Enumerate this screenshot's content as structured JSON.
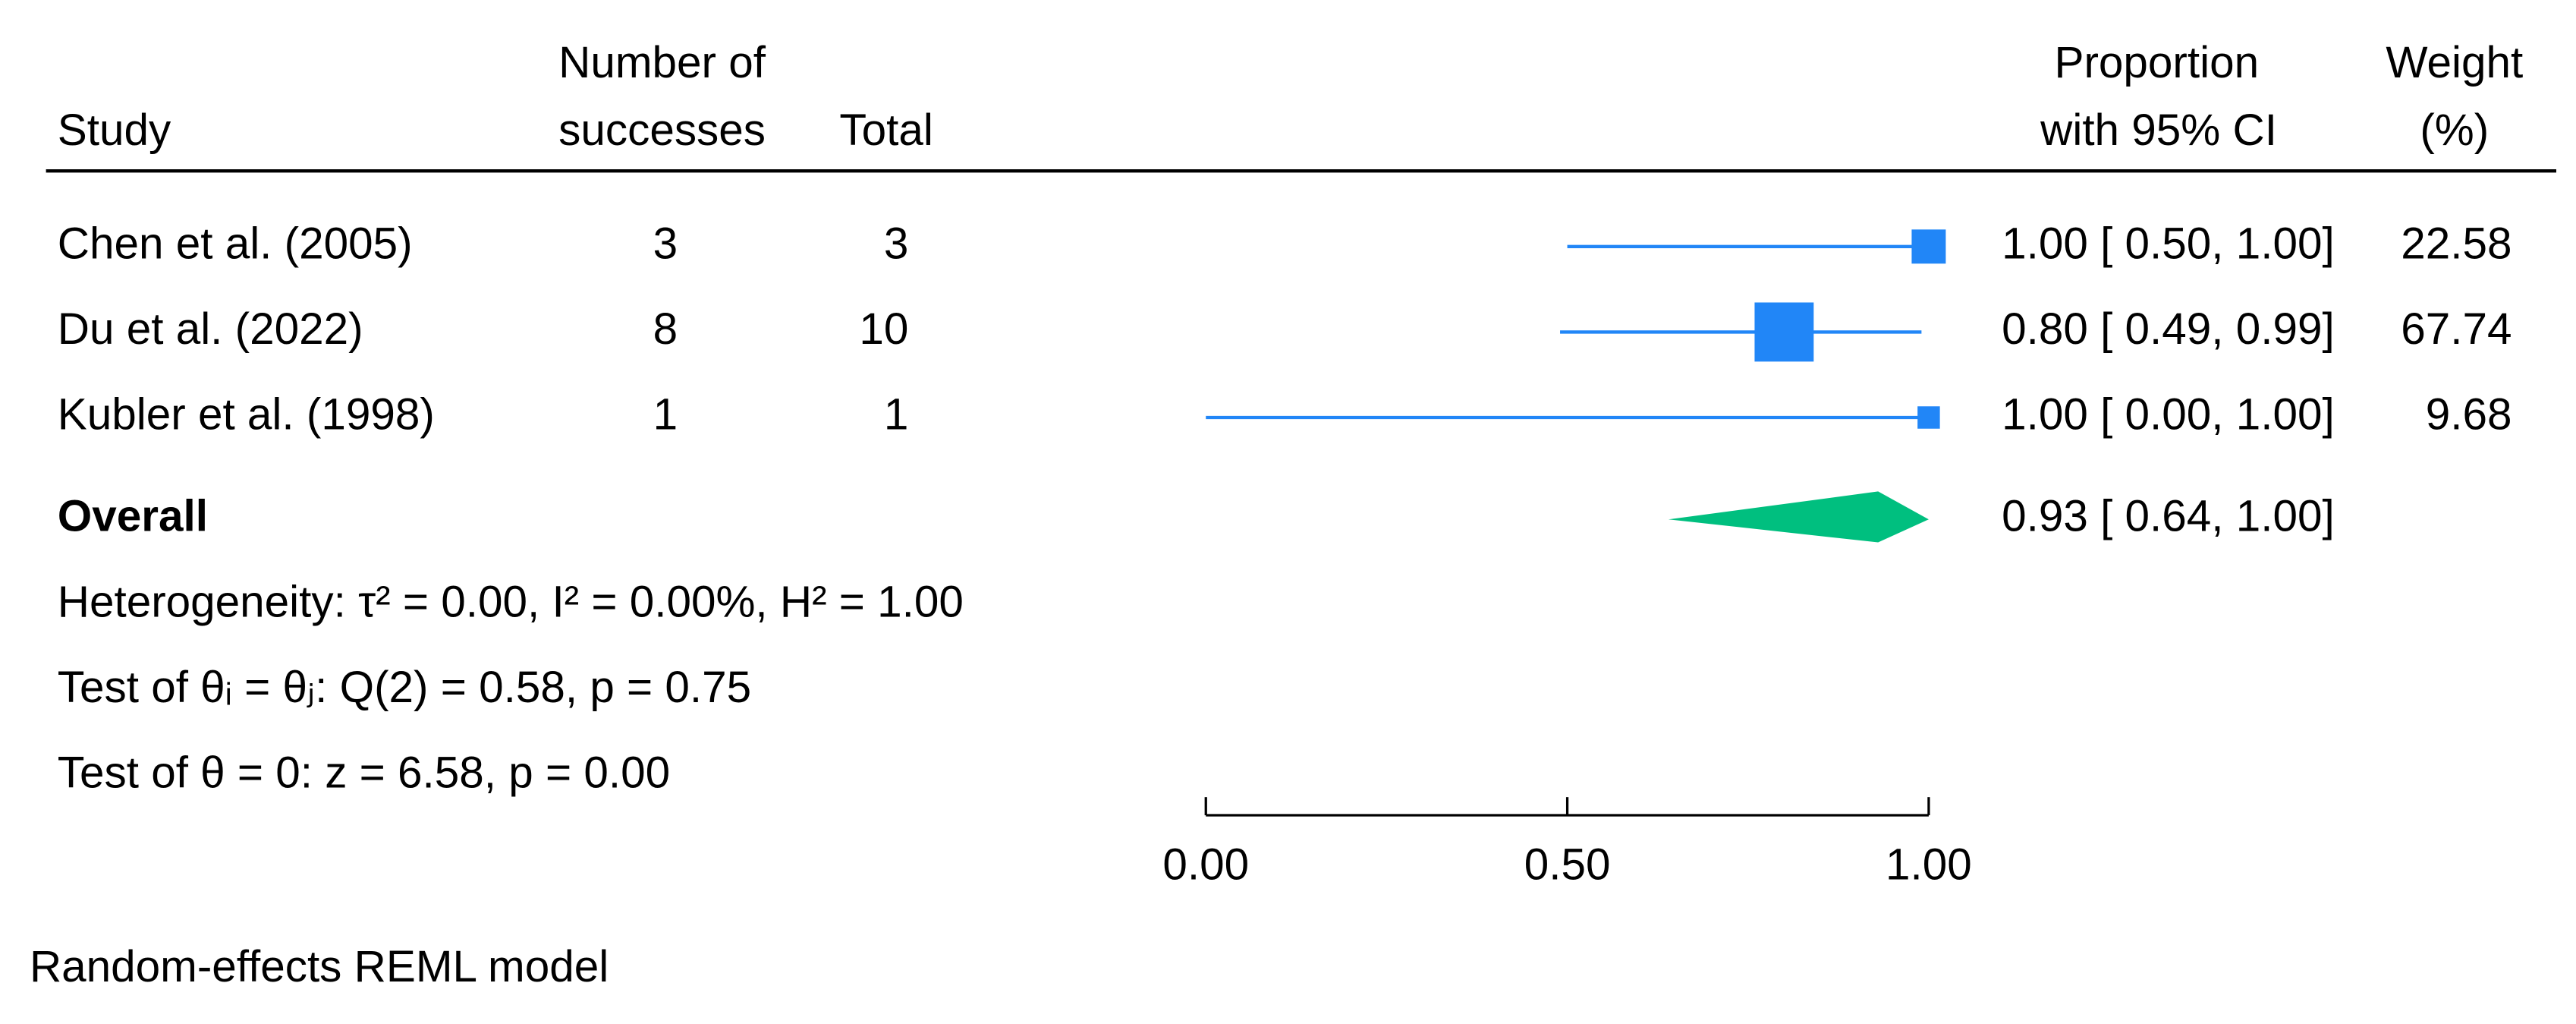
{
  "chart_data": {
    "type": "forest",
    "columns": {
      "study": "Study",
      "successes": [
        "Number of",
        "successes"
      ],
      "total": "Total",
      "ci": [
        "Proportion",
        "with 95% CI"
      ],
      "weight": [
        "Weight",
        "(%)"
      ]
    },
    "studies": [
      {
        "name": "Chen et al. (2005)",
        "successes": 3,
        "total": 3,
        "estimate": 1,
        "ci": [
          0.5,
          1
        ],
        "label": "1.00 [ 0.50, 1.00]",
        "weight": 22.58
      },
      {
        "name": "Du et al. (2022)",
        "successes": 8,
        "total": 10,
        "estimate": 0.8,
        "ci": [
          0.49,
          0.99
        ],
        "label": "0.80 [ 0.49, 0.99]",
        "weight": 67.74
      },
      {
        "name": "Kubler et al. (1998)",
        "successes": 1,
        "total": 1,
        "estimate": 1,
        "ci": [
          0,
          1
        ],
        "label": "1.00 [ 0.00, 1.00]",
        "weight": 9.68
      }
    ],
    "overall": {
      "name": "Overall",
      "estimate": 0.93,
      "ci": [
        0.64,
        1
      ],
      "label": "0.93 [ 0.64, 1.00]"
    },
    "stats": [
      "Heterogeneity: τ² = 0.00, I² = 0.00%, H² = 1.00",
      "Test of θᵢ = θⱼ: Q(2) = 0.58, p = 0.75",
      "Test of θ = 0: z = 6.58, p = 0.00"
    ],
    "xlim": [
      0,
      1
    ],
    "xticks": [
      {
        "value": 0,
        "label": "0.00"
      },
      {
        "value": 0.5,
        "label": "0.50"
      },
      {
        "value": 1,
        "label": "1.00"
      }
    ],
    "note": "Random-effects REML model",
    "color": "#2186f7",
    "overall_color": "#00bf7f"
  }
}
